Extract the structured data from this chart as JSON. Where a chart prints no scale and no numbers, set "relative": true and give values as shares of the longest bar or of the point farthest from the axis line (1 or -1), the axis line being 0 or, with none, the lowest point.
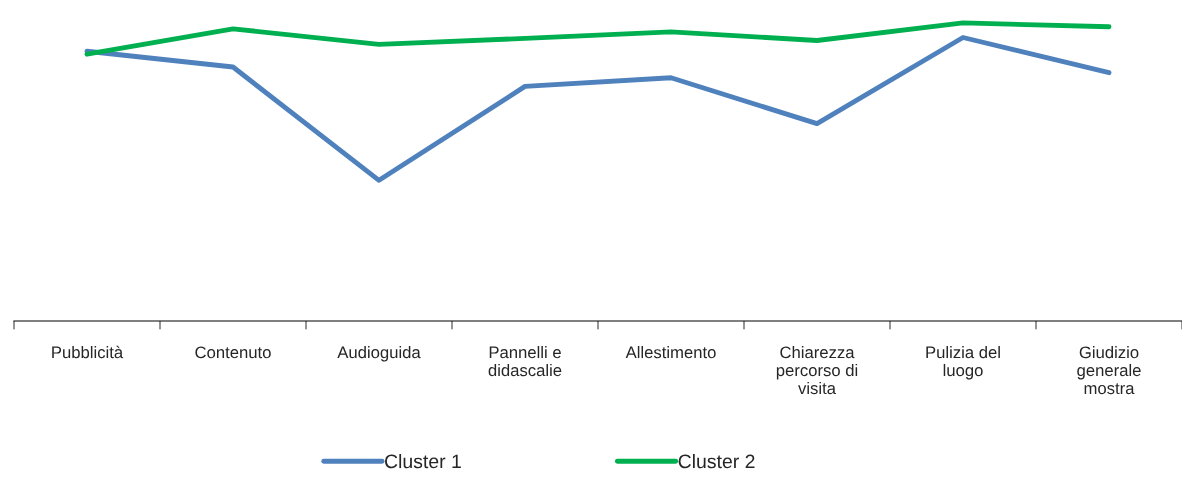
{
  "chart_data": {
    "type": "line",
    "relative": true,
    "categories": [
      "Pubblicità",
      "Contenuto",
      "Audioguida",
      "Pannelli e didascalie",
      "Allestimento",
      "Chiarezza percorso di visita",
      "Pulizia del luogo",
      "Giudizio generale mostra"
    ],
    "series": [
      {
        "name": "Cluster 1",
        "color": "#4f81bd",
        "values": [
          0.905,
          0.852,
          0.472,
          0.787,
          0.816,
          0.662,
          0.951,
          0.833
        ]
      },
      {
        "name": "Cluster 2",
        "color": "#00b050",
        "values": [
          0.895,
          0.98,
          0.928,
          0.948,
          0.97,
          0.941,
          1,
          0.987
        ]
      }
    ],
    "legend": "bottom",
    "grid": false,
    "marker": "none",
    "line_style": "solid"
  }
}
